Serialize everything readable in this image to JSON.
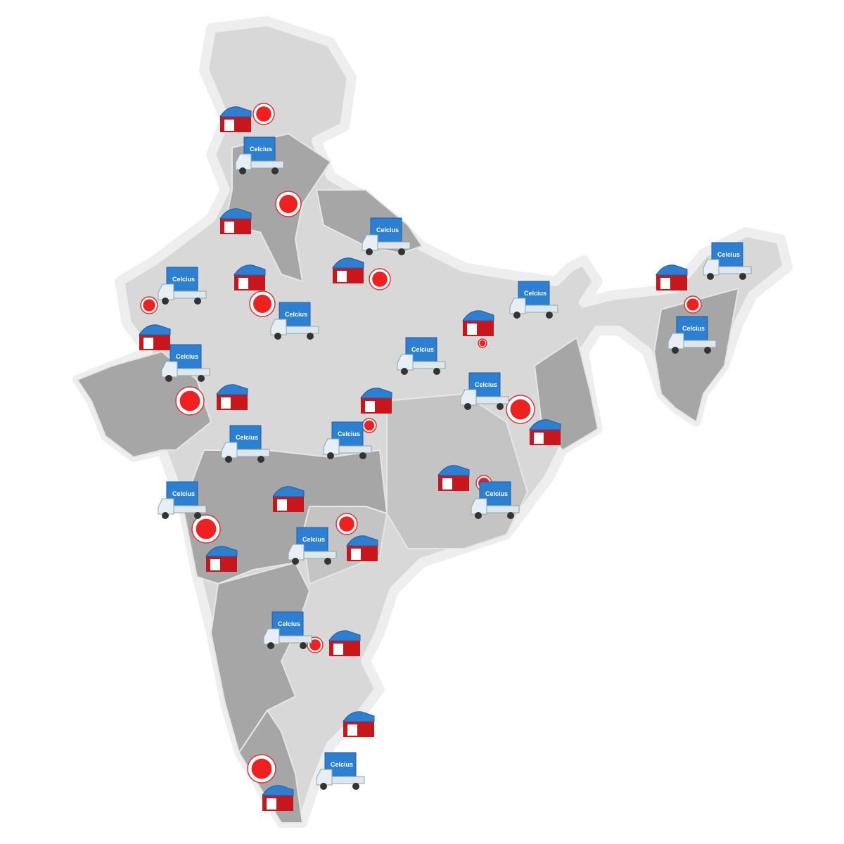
{
  "brand": "Celcius"
}
